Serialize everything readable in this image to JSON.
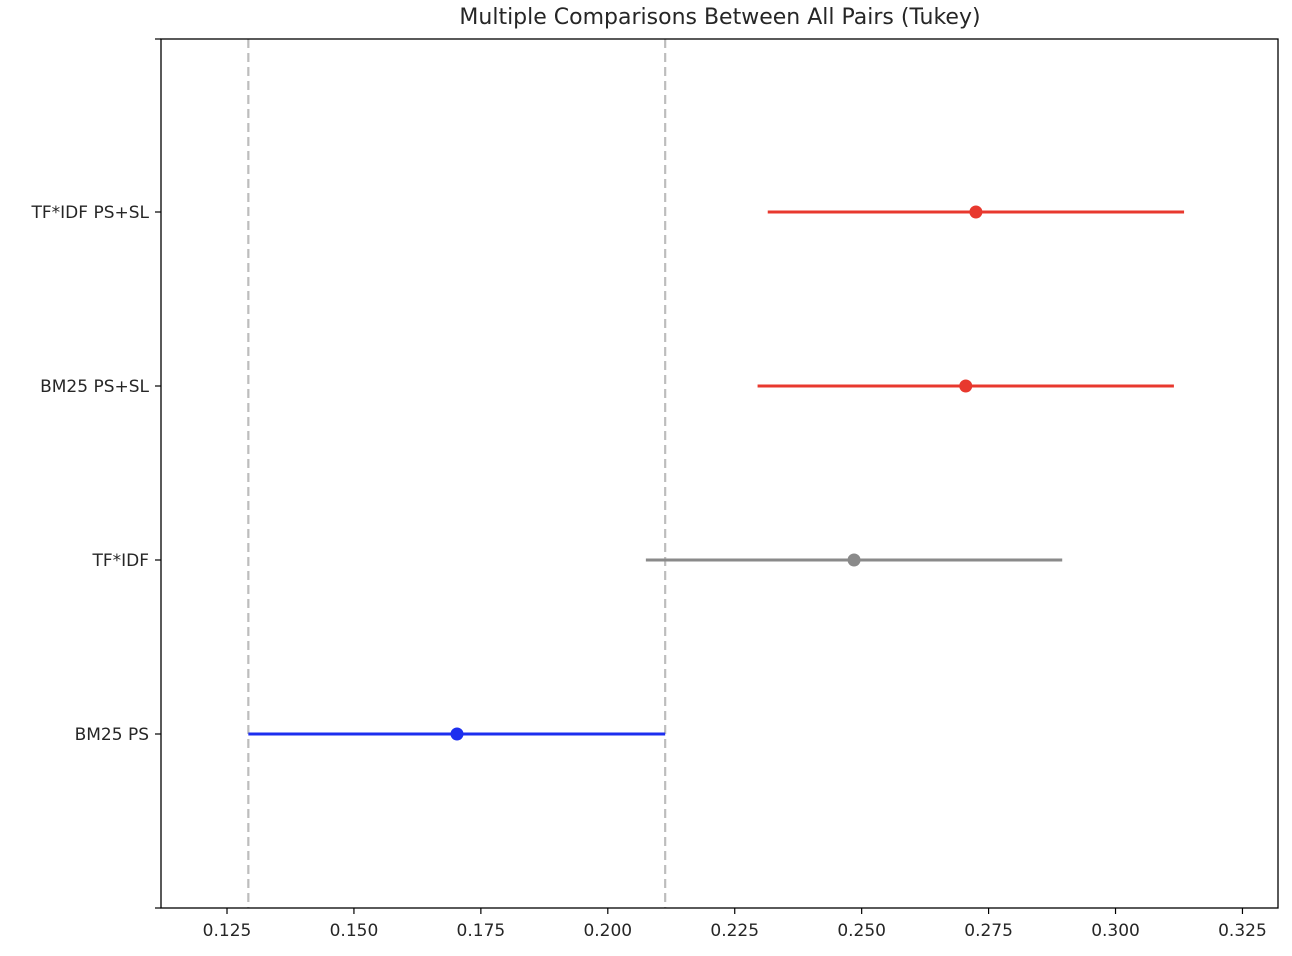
{
  "chart_data": {
    "type": "scatter",
    "title": "Multiple Comparisons Between All Pairs (Tukey)",
    "xlabel": "",
    "ylabel": "",
    "xlim": [
      0.112,
      0.332
    ],
    "x_ticks": [
      0.125,
      0.15,
      0.175,
      0.2,
      0.225,
      0.25,
      0.275,
      0.3,
      0.325
    ],
    "x_tick_labels": [
      "0.125",
      "0.150",
      "0.175",
      "0.200",
      "0.225",
      "0.250",
      "0.275",
      "0.300",
      "0.325"
    ],
    "grid": false,
    "legend": "none",
    "groups": [
      {
        "label": "TF*IDF PS+SL",
        "mean": 0.2725,
        "lower": 0.2315,
        "upper": 0.3135,
        "color": "#e8382e"
      },
      {
        "label": "BM25 PS+SL",
        "mean": 0.2705,
        "lower": 0.2295,
        "upper": 0.3115,
        "color": "#e8382e"
      },
      {
        "label": "TF*IDF",
        "mean": 0.2485,
        "lower": 0.2075,
        "upper": 0.2895,
        "color": "#8a8a8a"
      },
      {
        "label": "BM25 PS",
        "mean": 0.1703,
        "lower": 0.1292,
        "upper": 0.2113,
        "color": "#1d2fef"
      }
    ],
    "reference_lines": [
      0.1292,
      0.2113
    ],
    "reference_line_color": "#bdbdbd"
  }
}
